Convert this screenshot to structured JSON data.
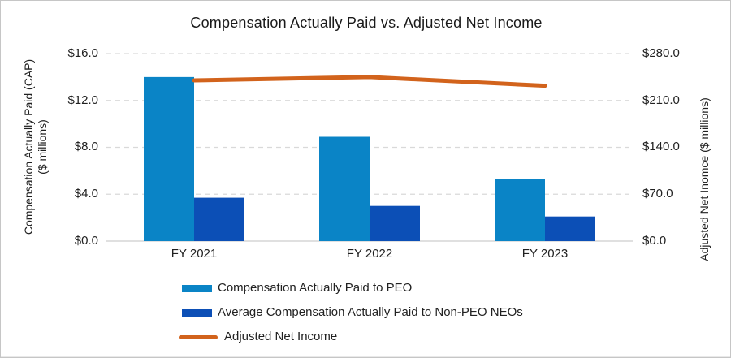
{
  "title": "Compensation Actually Paid vs. Adjusted Net Income",
  "axes": {
    "left": {
      "title_line1": "Compensation Actually Paid (CAP)",
      "title_line2": "($ millions)",
      "ticks": [
        "$16.0",
        "$12.0",
        "$8.0",
        "$4.0",
        "$0.0"
      ]
    },
    "right": {
      "title": "Adjusted Net Inomce ($ millions)",
      "ticks": [
        "$280.0",
        "$210.0",
        "$140.0",
        "$70.0",
        "$0.0"
      ]
    }
  },
  "chart_data": {
    "type": "combo-bar-line",
    "title": "Compensation Actually Paid vs. Adjusted Net Income",
    "categories": [
      "FY 2021",
      "FY 2022",
      "FY 2023"
    ],
    "series": [
      {
        "key": "peo",
        "name": "Compensation Actually Paid to PEO",
        "type": "bar",
        "axis": "left",
        "color": "#0a84c6",
        "values": [
          14.0,
          8.9,
          5.3
        ]
      },
      {
        "key": "non-peo-neos",
        "name": "Average Compensation Actually Paid to Non-PEO NEOs",
        "type": "bar",
        "axis": "left",
        "color": "#0c4fb6",
        "values": [
          3.7,
          3.0,
          2.1
        ]
      },
      {
        "key": "adjusted-net-income",
        "name": "Adjusted Net Income",
        "type": "line",
        "axis": "right",
        "color": "#d2631c",
        "values": [
          240,
          245,
          232
        ]
      }
    ],
    "left_ylim": [
      0,
      16
    ],
    "right_ylim": [
      0,
      280
    ],
    "grid": "dashed-horizontal",
    "gridline_color": "#d9d9d9",
    "baseline_color": "#d6d6d6",
    "legend_position": "bottom-left"
  },
  "legend": {
    "items": [
      {
        "label": "Compensation Actually Paid to PEO",
        "swatch": "bar",
        "color": "#0a84c6"
      },
      {
        "label": "Average Compensation Actually Paid to Non-PEO NEOs",
        "swatch": "bar",
        "color": "#0c4fb6"
      },
      {
        "label": "Adjusted Net Income",
        "swatch": "line",
        "color": "#d2631c"
      }
    ]
  }
}
